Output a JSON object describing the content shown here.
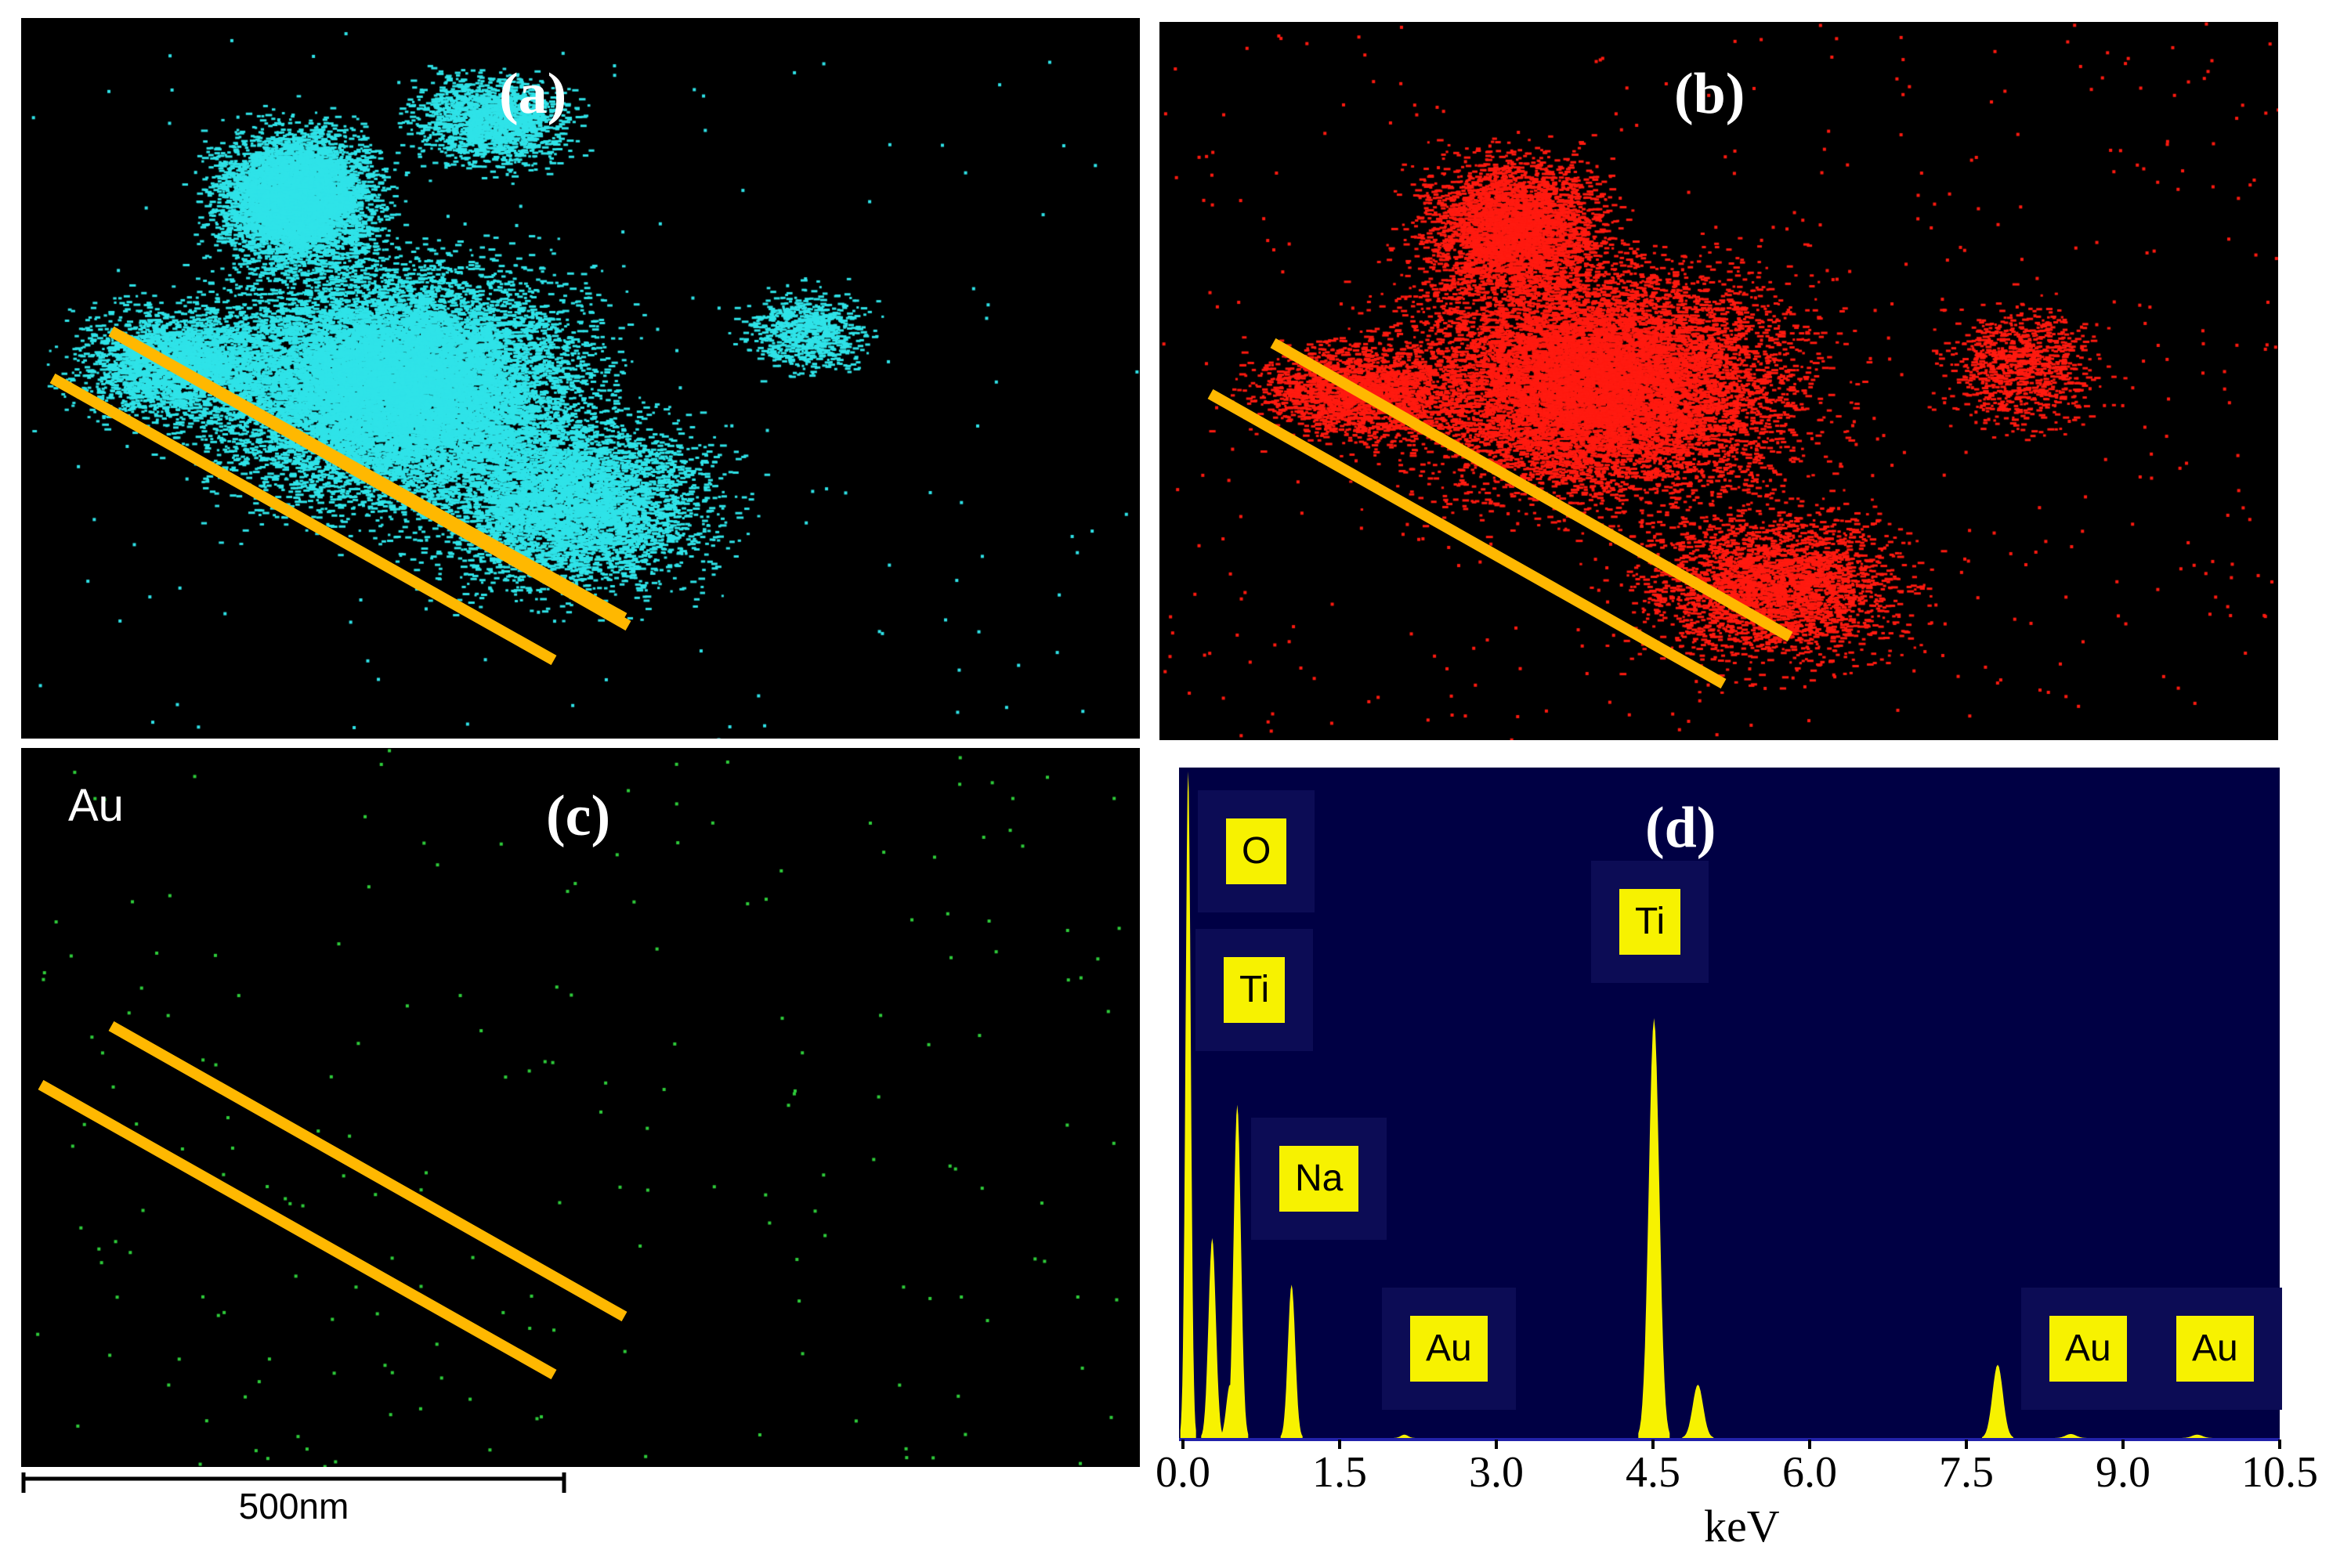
{
  "panels": {
    "a": {
      "label": "(a)",
      "dot_color": "#2fe3e8"
    },
    "b": {
      "label": "(b)",
      "dot_color": "#ff1a10"
    },
    "c": {
      "label": "(c)",
      "element": "Au",
      "dot_color": "#2ecc3a"
    },
    "d": {
      "label": "(d)"
    }
  },
  "scale_bar": {
    "label": "500nm"
  },
  "line_color": "#ffb800",
  "colors": {
    "spectrum_bg": "#000044",
    "spectrum_fill": "#f7f200"
  },
  "chart_data": {
    "type": "area",
    "title": "",
    "xlabel": "keV",
    "ylabel": "",
    "xlim": [
      0,
      10.5
    ],
    "ylim": [
      0,
      100
    ],
    "x_ticks": [
      "0.0",
      "1.5",
      "3.0",
      "4.5",
      "6.0",
      "7.5",
      "9.0",
      "10.5"
    ],
    "peaks": [
      {
        "x": 0.05,
        "y": 100,
        "label": ""
      },
      {
        "x": 0.28,
        "y": 30,
        "label": ""
      },
      {
        "x": 0.52,
        "y": 50,
        "label": "O"
      },
      {
        "x": 0.45,
        "y": 8,
        "label": "Ti"
      },
      {
        "x": 1.04,
        "y": 23,
        "label": "Na"
      },
      {
        "x": 2.12,
        "y": 0.5,
        "label": "Au"
      },
      {
        "x": 4.51,
        "y": 63,
        "label": "Ti"
      },
      {
        "x": 4.93,
        "y": 8,
        "label": ""
      },
      {
        "x": 7.8,
        "y": 11,
        "label": "Au"
      },
      {
        "x": 8.5,
        "y": 0.6,
        "label": "Au"
      },
      {
        "x": 9.71,
        "y": 0.5,
        "label": ""
      }
    ],
    "peak_labels": [
      {
        "text": "O",
        "x": 0.6
      },
      {
        "text": "Ti",
        "x": 0.6
      },
      {
        "text": "Na",
        "x": 1.15
      },
      {
        "text": "Au",
        "x": 2.4
      },
      {
        "text": "Ti",
        "x": 4.5
      },
      {
        "text": "Au",
        "x": 8.6
      },
      {
        "text": "Au",
        "x": 9.8
      }
    ]
  }
}
